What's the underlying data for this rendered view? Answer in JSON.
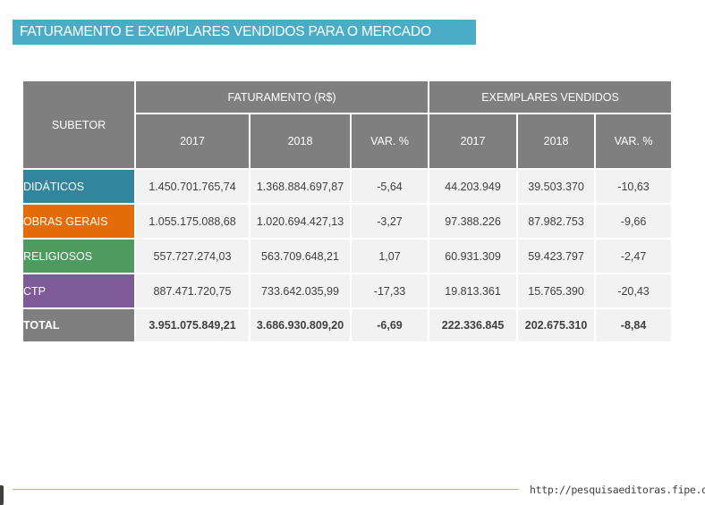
{
  "title": "FATURAMENTO E EXEMPLARES VENDIDOS PARA O MERCADO",
  "table": {
    "subsector_header": "SUBETOR",
    "group_headers": [
      "FATURAMENTO (R$)",
      "EXEMPLARES VENDIDOS"
    ],
    "sub_headers": [
      "2017",
      "2018",
      "VAR. %",
      "2017",
      "2018",
      "VAR. %"
    ],
    "rows": [
      {
        "label": "DIDÁTICOS",
        "color": "#31859c",
        "values": [
          "1.450.701.765,74",
          "1.368.884.697,87",
          "-5,64",
          "44.203.949",
          "39.503.370",
          "-10,63"
        ]
      },
      {
        "label": "OBRAS GERAIS",
        "color": "#e36c09",
        "values": [
          "1.055.175.088,68",
          "1.020.694.427,13",
          "-3,27",
          "97.388.226",
          "87.982.753",
          "-9,66"
        ]
      },
      {
        "label": "RELIGIOSOS",
        "color": "#4f9a5f",
        "values": [
          "557.727.274,03",
          "563.709.648,21",
          "1,07",
          "60.931.309",
          "59.423.797",
          "-2,47"
        ]
      },
      {
        "label": "CTP",
        "color": "#7e5a96",
        "values": [
          "887.471.720,75",
          "733.642.035,99",
          "-17,33",
          "19.813.361",
          "15.765.390",
          "-20,43"
        ]
      },
      {
        "label": "TOTAL",
        "color": "#7f7f7f",
        "values": [
          "3.951.075.849,21",
          "3.686.930.809,20",
          "-6,69",
          "222.336.845",
          "202.675.310",
          "-8,84"
        ]
      }
    ]
  },
  "footer": {
    "url": "http://pesquisaeditoras.fipe.org.br"
  },
  "colors": {
    "title_bar": "#4bacc6",
    "header": "#7f7f7f",
    "cell": "#f2f2f2"
  }
}
